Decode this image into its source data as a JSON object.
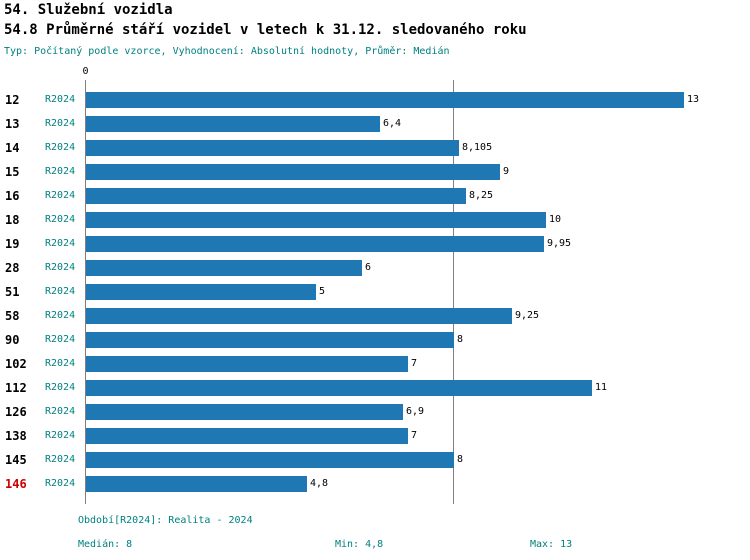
{
  "colors": {
    "bar": "#1F77B4",
    "teal": "#008080",
    "red": "#CC0000",
    "axis": "#808080"
  },
  "header": {
    "title_line1": "54. Služební vozidla",
    "title_line2": "54.8 Průměrné stáří vozidel v letech k 31.12. sledovaného roku",
    "subtitle": "Typ: Počítaný podle vzorce, Vyhodnocení: Absolutní hodnoty, Průměr: Medián"
  },
  "chart_data": {
    "type": "bar",
    "orientation": "horizontal",
    "title": "54.8 Průměrné stáří vozidel v letech k 31.12. sledovaného roku",
    "categories": [
      "12",
      "13",
      "14",
      "15",
      "16",
      "18",
      "19",
      "28",
      "51",
      "58",
      "90",
      "102",
      "112",
      "126",
      "138",
      "145",
      "146"
    ],
    "series": [
      {
        "name": "R2024",
        "values": [
          13,
          6.4,
          8.105,
          9,
          8.25,
          10,
          9.95,
          6,
          5,
          9.25,
          8,
          7,
          11,
          6.9,
          7,
          8,
          4.8
        ]
      }
    ],
    "value_labels": [
      "13",
      "6,4",
      "8,105",
      "9",
      "8,25",
      "10",
      "9,95",
      "6",
      "5",
      "9,25",
      "8",
      "7",
      "11",
      "6,9",
      "7",
      "8",
      "4,8"
    ],
    "xlim": [
      0,
      13.5
    ],
    "x_zero_label": "0",
    "median_value": 8,
    "highlight_category": "146",
    "grid": "vertical median line only",
    "legend": "none"
  },
  "footer": {
    "period": "Období[R2024]: Realita - 2024",
    "median": "Medián: 8",
    "min": "Min: 4,8",
    "max": "Max: 13"
  }
}
